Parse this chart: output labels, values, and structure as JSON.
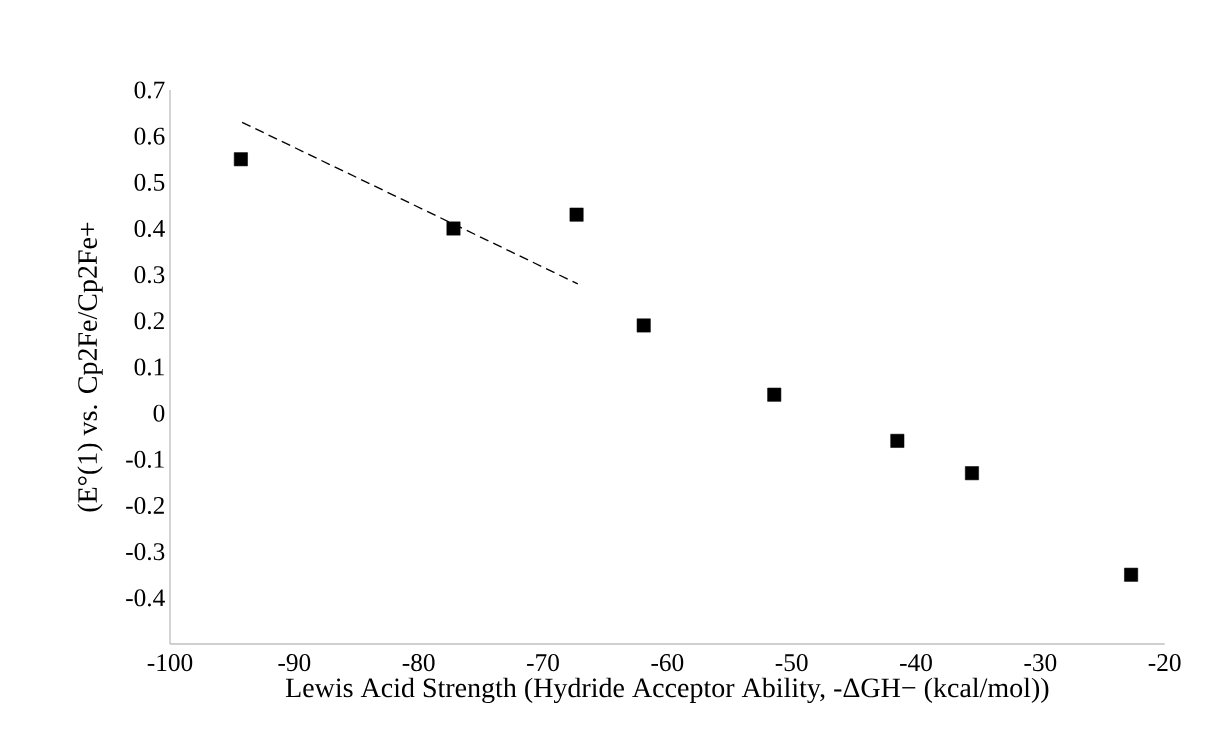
{
  "chart_data": {
    "type": "scatter",
    "xlabel": "Lewis Acid Strength (Hydride Acceptor Ability, -ΔGH− (kcal/mol))",
    "ylabel": "(E°(1) vs. Cp2Fe/Cp2Fe+",
    "xlim": [
      -100,
      -20
    ],
    "xticks": [
      -100,
      -90,
      -80,
      -70,
      -60,
      -50,
      -40,
      -30,
      -20
    ],
    "ylim": [
      -0.5,
      0.7
    ],
    "yticks": [
      -0.4,
      -0.3,
      -0.2,
      -0.1,
      0,
      0.1,
      0.2,
      0.3,
      0.4,
      0.5,
      0.6,
      0.7
    ],
    "marker": "square",
    "series": [
      {
        "color": "#000000",
        "x": [
          -94.3,
          -77.2,
          -67.3,
          -61.9,
          -51.4,
          -41.5,
          -35.5,
          -22.7
        ],
        "values": [
          0.55,
          0.4,
          0.43,
          0.19,
          0.04,
          -0.06,
          -0.13,
          -0.35
        ]
      },
      {
        "type": "line",
        "color": "#000000",
        "line_style": "dashed",
        "marker": "none",
        "x": [
          -94.2,
          -67.2
        ],
        "values": [
          0.63,
          0.28
        ]
      }
    ]
  }
}
